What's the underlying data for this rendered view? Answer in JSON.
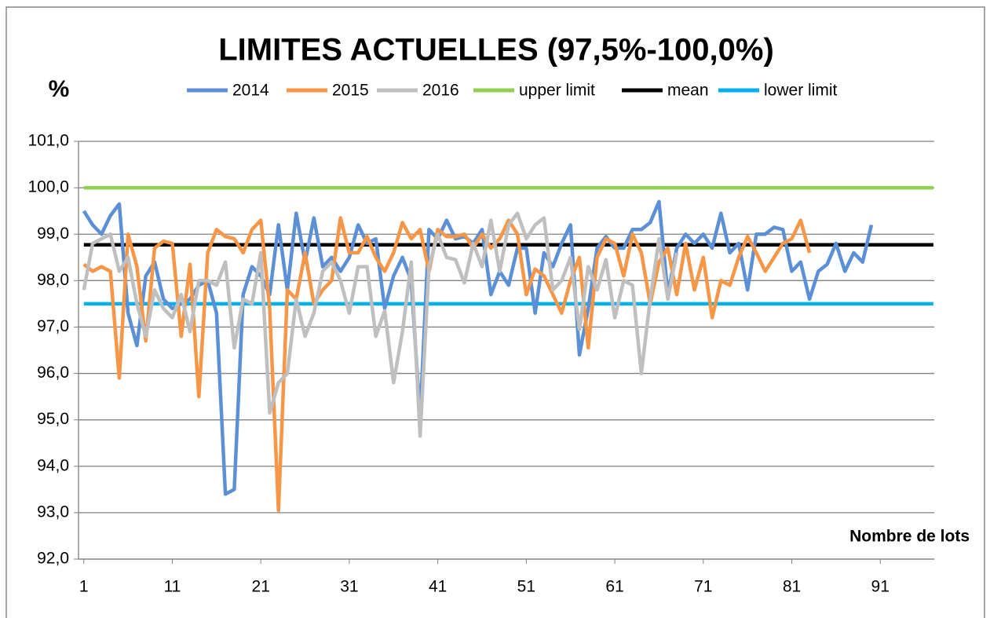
{
  "chart_data": {
    "type": "line",
    "title": "LIMITES ACTUELLES (97,5%-100,0%)",
    "ylabel": "%",
    "xlabel": "Nombre de lots",
    "x": [
      1,
      2,
      3,
      4,
      5,
      6,
      7,
      8,
      9,
      10,
      11,
      12,
      13,
      14,
      15,
      16,
      17,
      18,
      19,
      20,
      21,
      22,
      23,
      24,
      25,
      26,
      27,
      28,
      29,
      30,
      31,
      32,
      33,
      34,
      35,
      36,
      37,
      38,
      39,
      40,
      41,
      42,
      43,
      44,
      45,
      46,
      47,
      48,
      49,
      50,
      51,
      52,
      53,
      54,
      55,
      56,
      57,
      58,
      59,
      60,
      61,
      62,
      63,
      64,
      65,
      66,
      67,
      68,
      69,
      70,
      71,
      72,
      73,
      74,
      75,
      76,
      77,
      78,
      79,
      80,
      81,
      82,
      83,
      84,
      85,
      86,
      87,
      88,
      89,
      90,
      91,
      92,
      93,
      94,
      95,
      96,
      97
    ],
    "series": [
      {
        "name": "2014",
        "color": "#5b8fd6",
        "values": [
          99.5,
          99.2,
          99.0,
          99.4,
          99.65,
          97.3,
          96.6,
          98.1,
          98.4,
          97.6,
          97.4,
          97.5,
          97.6,
          97.9,
          98.0,
          97.3,
          93.4,
          93.5,
          97.7,
          98.3,
          98.1,
          97.7,
          99.2,
          97.8,
          99.45,
          98.4,
          99.35,
          98.3,
          98.5,
          98.2,
          98.5,
          99.2,
          98.8,
          98.9,
          97.4,
          98.1,
          98.5,
          98.0,
          95.05,
          99.1,
          98.9,
          99.3,
          98.9,
          98.95,
          98.8,
          99.1,
          97.7,
          98.2,
          97.9,
          98.7,
          98.7,
          97.3,
          98.6,
          98.3,
          98.8,
          99.2,
          96.4,
          97.4,
          98.7,
          98.95,
          98.7,
          98.7,
          99.1,
          99.1,
          99.25,
          99.7,
          97.7,
          98.7,
          99.0,
          98.8,
          99.0,
          98.7,
          99.45,
          98.6,
          98.8,
          97.8,
          99.0,
          99.0,
          99.15,
          99.1,
          98.2,
          98.4,
          97.6,
          98.2,
          98.35,
          98.8,
          98.2,
          98.6,
          98.4,
          99.2,
          null,
          null,
          null,
          null,
          null,
          null,
          null
        ]
      },
      {
        "name": "2015",
        "color": "#f79646",
        "values": [
          98.35,
          98.2,
          98.3,
          98.2,
          95.9,
          99.0,
          98.3,
          96.7,
          98.7,
          98.85,
          98.8,
          96.8,
          98.35,
          95.5,
          98.6,
          99.1,
          98.95,
          98.9,
          98.6,
          99.1,
          99.3,
          97.4,
          93.05,
          97.8,
          97.6,
          98.6,
          97.5,
          97.8,
          98.0,
          99.35,
          98.6,
          98.6,
          98.95,
          98.5,
          98.2,
          98.6,
          99.25,
          98.9,
          99.1,
          98.2,
          99.1,
          98.95,
          98.95,
          99.0,
          98.7,
          99.0,
          98.7,
          98.9,
          99.3,
          99.0,
          97.7,
          98.25,
          98.1,
          97.7,
          97.3,
          98.0,
          98.5,
          96.55,
          98.5,
          98.9,
          98.8,
          98.1,
          99.0,
          98.6,
          97.5,
          98.4,
          98.7,
          97.7,
          98.8,
          97.8,
          98.5,
          97.2,
          98.0,
          97.9,
          98.5,
          98.95,
          98.6,
          98.2,
          98.5,
          98.8,
          98.9,
          99.3,
          98.6,
          null,
          null,
          null,
          null,
          null,
          null,
          null,
          null,
          null,
          null,
          null,
          null,
          null,
          null
        ]
      },
      {
        "name": "2016",
        "color": "#bfbfbf",
        "values": [
          97.8,
          98.8,
          98.9,
          99.0,
          98.2,
          98.5,
          97.5,
          96.8,
          97.8,
          97.4,
          97.2,
          97.7,
          96.9,
          98.0,
          98.0,
          97.9,
          98.4,
          96.55,
          97.6,
          97.5,
          98.6,
          95.15,
          95.8,
          96.0,
          97.6,
          96.8,
          97.3,
          98.2,
          98.4,
          98.0,
          97.3,
          98.3,
          98.3,
          96.8,
          97.35,
          95.8,
          96.9,
          98.4,
          94.65,
          98.3,
          99.0,
          98.5,
          98.45,
          97.95,
          98.8,
          98.3,
          99.3,
          98.2,
          99.2,
          99.45,
          98.9,
          99.2,
          99.35,
          97.8,
          98.0,
          98.5,
          96.95,
          98.3,
          97.8,
          98.45,
          97.2,
          98.0,
          97.9,
          96.0,
          97.6,
          98.9,
          97.6,
          98.6,
          null,
          null,
          null,
          null,
          null,
          null,
          null,
          null,
          null,
          null,
          null,
          null,
          null,
          null,
          null,
          null,
          null,
          null,
          null,
          null,
          null,
          null,
          null,
          null,
          null,
          null,
          null,
          null,
          null
        ]
      },
      {
        "name": "upper limit",
        "color": "#92d050",
        "values": [
          100,
          100,
          100,
          100,
          100,
          100,
          100,
          100,
          100,
          100,
          100,
          100,
          100,
          100,
          100,
          100,
          100,
          100,
          100,
          100,
          100,
          100,
          100,
          100,
          100,
          100,
          100,
          100,
          100,
          100,
          100,
          100,
          100,
          100,
          100,
          100,
          100,
          100,
          100,
          100,
          100,
          100,
          100,
          100,
          100,
          100,
          100,
          100,
          100,
          100,
          100,
          100,
          100,
          100,
          100,
          100,
          100,
          100,
          100,
          100,
          100,
          100,
          100,
          100,
          100,
          100,
          100,
          100,
          100,
          100,
          100,
          100,
          100,
          100,
          100,
          100,
          100,
          100,
          100,
          100,
          100,
          100,
          100,
          100,
          100,
          100,
          100,
          100,
          100,
          100,
          100,
          100,
          100,
          100,
          100,
          100,
          100
        ]
      },
      {
        "name": "mean",
        "color": "#000000",
        "values": [
          98.77,
          98.77,
          98.77,
          98.77,
          98.77,
          98.77,
          98.77,
          98.77,
          98.77,
          98.77,
          98.77,
          98.77,
          98.77,
          98.77,
          98.77,
          98.77,
          98.77,
          98.77,
          98.77,
          98.77,
          98.77,
          98.77,
          98.77,
          98.77,
          98.77,
          98.77,
          98.77,
          98.77,
          98.77,
          98.77,
          98.77,
          98.77,
          98.77,
          98.77,
          98.77,
          98.77,
          98.77,
          98.77,
          98.77,
          98.77,
          98.77,
          98.77,
          98.77,
          98.77,
          98.77,
          98.77,
          98.77,
          98.77,
          98.77,
          98.77,
          98.77,
          98.77,
          98.77,
          98.77,
          98.77,
          98.77,
          98.77,
          98.77,
          98.77,
          98.77,
          98.77,
          98.77,
          98.77,
          98.77,
          98.77,
          98.77,
          98.77,
          98.77,
          98.77,
          98.77,
          98.77,
          98.77,
          98.77,
          98.77,
          98.77,
          98.77,
          98.77,
          98.77,
          98.77,
          98.77,
          98.77,
          98.77,
          98.77,
          98.77,
          98.77,
          98.77,
          98.77,
          98.77,
          98.77,
          98.77,
          98.77,
          98.77,
          98.77,
          98.77,
          98.77,
          98.77,
          98.77
        ]
      },
      {
        "name": "lower limit",
        "color": "#00b0f0",
        "values": [
          97.5,
          97.5,
          97.5,
          97.5,
          97.5,
          97.5,
          97.5,
          97.5,
          97.5,
          97.5,
          97.5,
          97.5,
          97.5,
          97.5,
          97.5,
          97.5,
          97.5,
          97.5,
          97.5,
          97.5,
          97.5,
          97.5,
          97.5,
          97.5,
          97.5,
          97.5,
          97.5,
          97.5,
          97.5,
          97.5,
          97.5,
          97.5,
          97.5,
          97.5,
          97.5,
          97.5,
          97.5,
          97.5,
          97.5,
          97.5,
          97.5,
          97.5,
          97.5,
          97.5,
          97.5,
          97.5,
          97.5,
          97.5,
          97.5,
          97.5,
          97.5,
          97.5,
          97.5,
          97.5,
          97.5,
          97.5,
          97.5,
          97.5,
          97.5,
          97.5,
          97.5,
          97.5,
          97.5,
          97.5,
          97.5,
          97.5,
          97.5,
          97.5,
          97.5,
          97.5,
          97.5,
          97.5,
          97.5,
          97.5,
          97.5,
          97.5,
          97.5,
          97.5,
          97.5,
          97.5,
          97.5,
          97.5,
          97.5,
          97.5,
          97.5,
          97.5,
          97.5,
          97.5,
          97.5,
          97.5,
          97.5,
          97.5,
          97.5,
          97.5,
          97.5,
          97.5,
          97.5
        ]
      }
    ],
    "xlim": [
      0.4,
      97.1
    ],
    "xticks": [
      1,
      11,
      21,
      31,
      41,
      51,
      61,
      71,
      81,
      91
    ],
    "ylim": [
      92,
      101
    ],
    "yticks": [
      {
        "value": 92,
        "label": "92,0"
      },
      {
        "value": 93,
        "label": "93,0"
      },
      {
        "value": 94,
        "label": "94,0"
      },
      {
        "value": 95,
        "label": "95,0"
      },
      {
        "value": 96,
        "label": "96,0"
      },
      {
        "value": 97,
        "label": "97,0"
      },
      {
        "value": 98,
        "label": "98,0"
      },
      {
        "value": 99,
        "label": "99,0"
      },
      {
        "value": 100,
        "label": "100,0"
      },
      {
        "value": 101,
        "label": "101,0"
      }
    ],
    "grid": true,
    "legend": "top"
  }
}
